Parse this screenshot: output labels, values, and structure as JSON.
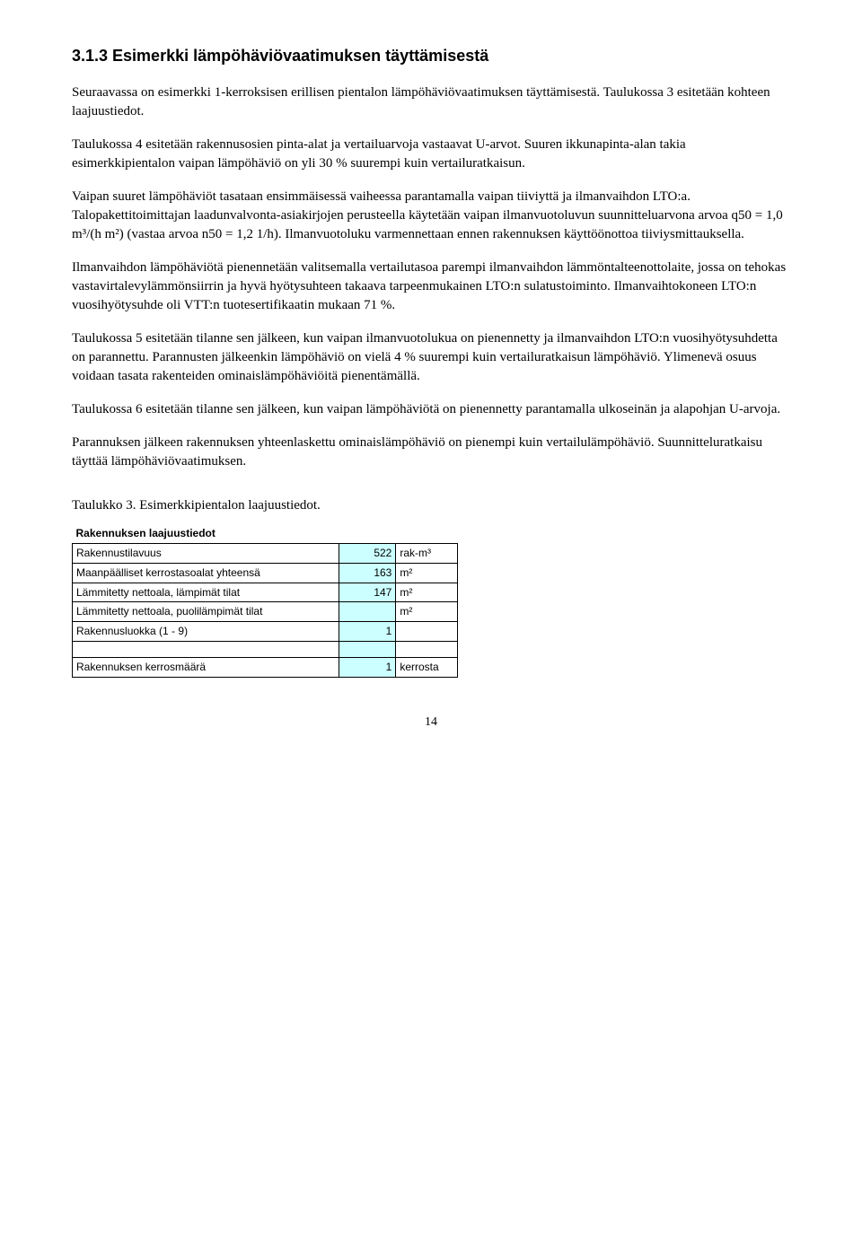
{
  "heading": "3.1.3  Esimerkki lämpöhäviövaatimuksen täyttämisestä",
  "p1": "Seuraavassa on esimerkki 1-kerroksisen erillisen pientalon lämpöhäviövaatimuksen täyttämisestä. Taulukossa 3 esitetään kohteen laajuustiedot.",
  "p2": "Taulukossa 4 esitetään rakennusosien pinta-alat ja vertailuarvoja vastaavat U-arvot. Suuren ikkunapinta-alan takia esimerkkipientalon vaipan lämpöhäviö on yli 30 % suurempi kuin vertailuratkaisun.",
  "p3": "Vaipan suuret lämpöhäviöt tasataan ensimmäisessä vaiheessa parantamalla vaipan tiiviyttä ja ilmanvaihdon LTO:a. Talopakettitoimittajan laadunvalvonta-asiakirjojen perusteella käytetään vaipan ilmanvuotoluvun suunnitteluarvona arvoa q50 = 1,0 m³/(h m²) (vastaa arvoa n50 = 1,2 1/h). Ilmanvuotoluku varmennettaan ennen rakennuksen käyttöönottoa tiiviysmittauksella.",
  "p4": "Ilmanvaihdon lämpöhäviötä pienennetään valitsemalla vertailutasoa parempi ilmanvaihdon lämmöntalteenottolaite, jossa on tehokas vastavirtalevylämmönsiirrin ja hyvä hyötysuhteen takaava tarpeenmukainen LTO:n sulatustoiminto. Ilmanvaihtokoneen LTO:n vuosihyötysuhde oli VTT:n tuotesertifikaatin mukaan 71 %.",
  "p5": "Taulukossa 5 esitetään tilanne sen jälkeen, kun vaipan ilmanvuotolukua on pienennetty ja ilmanvaihdon LTO:n vuosihyötysuhdetta on parannettu. Parannusten jälkeenkin lämpöhäviö on vielä 4 % suurempi kuin vertailuratkaisun lämpöhäviö. Ylimenevä osuus voidaan tasata rakenteiden ominaislämpöhäviöitä pienentämällä.",
  "p6": "Taulukossa 6 esitetään tilanne sen jälkeen, kun vaipan lämpöhäviötä on pienennetty parantamalla ulkoseinän ja alapohjan U-arvoja.",
  "p7": "Parannuksen jälkeen rakennuksen yhteenlaskettu ominaislämpöhäviö on pienempi kuin vertailulämpöhäviö. Suunnitteluratkaisu täyttää lämpöhäviövaatimuksen.",
  "tableCaption": "Taulukko 3. Esimerkkipientalon laajuustiedot.",
  "table": {
    "header": "Rakennuksen laajuustiedot",
    "rows": [
      {
        "label": "Rakennustilavuus",
        "value": "522",
        "unit": "rak-m³"
      },
      {
        "label": "Maanpäälliset kerrostasoalat yhteensä",
        "value": "163",
        "unit": "m²"
      },
      {
        "label": "Lämmitetty nettoala, lämpimät tilat",
        "value": "147",
        "unit": "m²"
      },
      {
        "label": "Lämmitetty nettoala, puolilämpimät tilat",
        "value": "",
        "unit": "m²"
      },
      {
        "label": "Rakennusluokka (1 - 9)",
        "value": "1",
        "unit": ""
      },
      {
        "label": "Rakennuksen kerrosmäärä",
        "value": "1",
        "unit": "kerrosta"
      }
    ]
  },
  "pageNumber": "14"
}
